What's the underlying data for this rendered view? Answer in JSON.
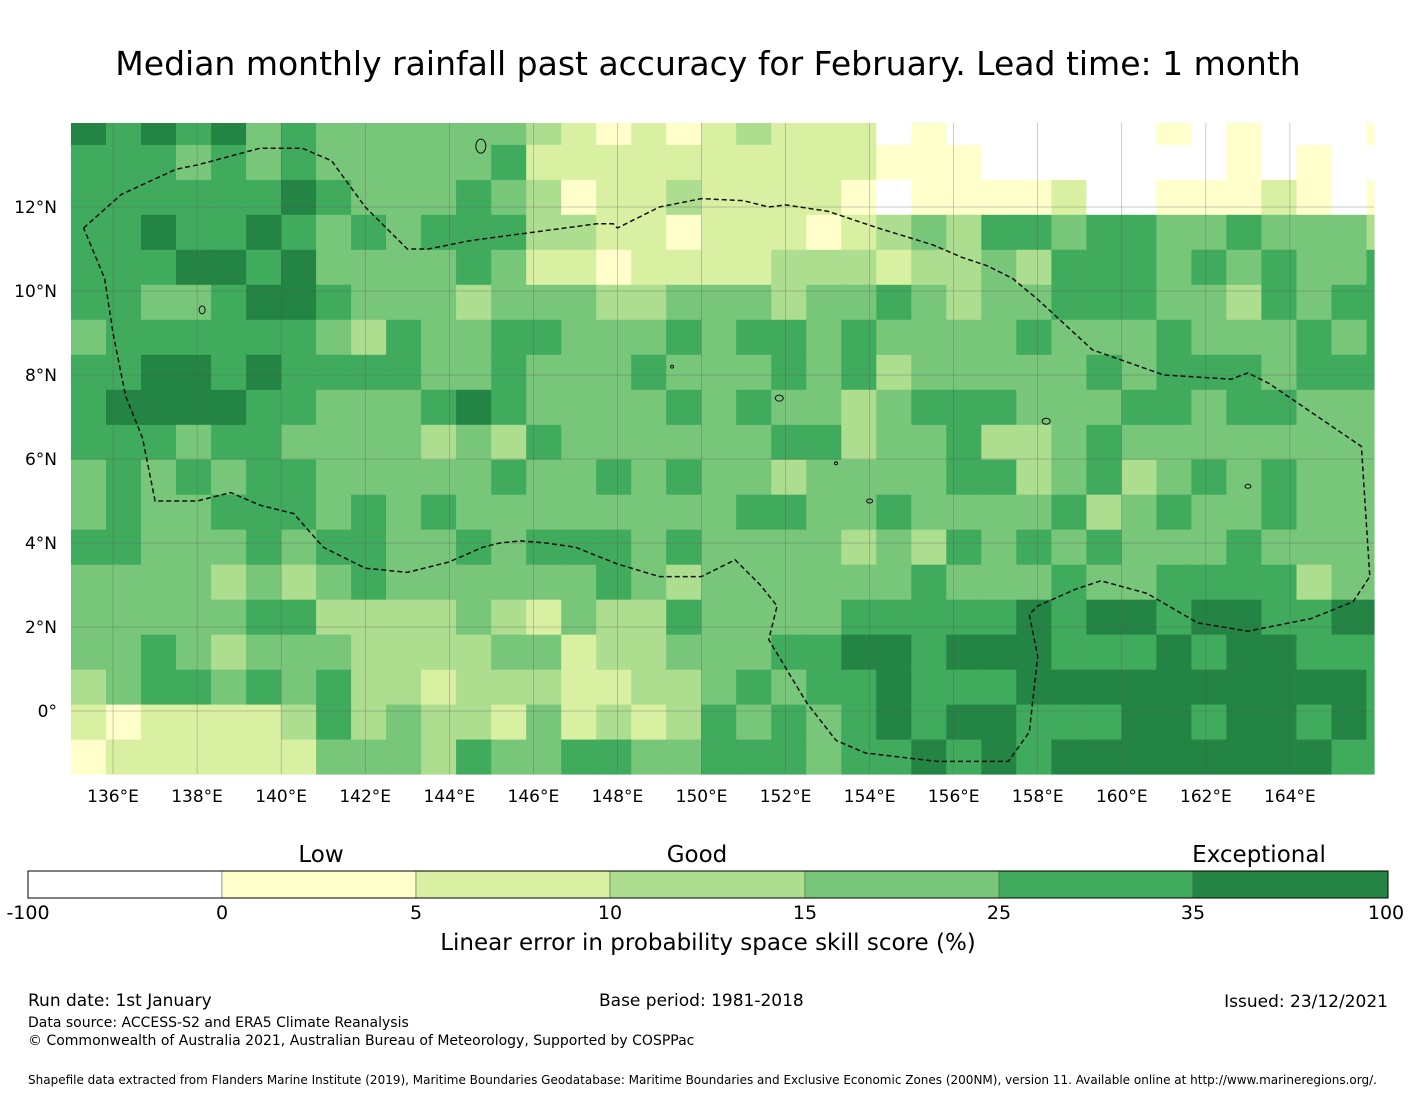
{
  "title": "Median monthly rainfall past accuracy for February. Lead time: 1 month",
  "map": {
    "lon_ticks": [
      "136°E",
      "138°E",
      "140°E",
      "142°E",
      "144°E",
      "146°E",
      "148°E",
      "150°E",
      "152°E",
      "154°E",
      "156°E",
      "158°E",
      "160°E",
      "162°E",
      "164°E"
    ],
    "lat_ticks": [
      "12°N",
      "10°N",
      "8°N",
      "6°N",
      "4°N",
      "2°N",
      "0°"
    ],
    "lon_range": [
      135.0,
      166.0
    ],
    "lat_range": [
      -1.5,
      14.0
    ],
    "grid_resolution_deg": 0.833,
    "boundary_lonlat": [
      [
        135.3,
        11.5
      ],
      [
        136.2,
        12.3
      ],
      [
        137.5,
        12.9
      ],
      [
        138.0,
        13.0
      ],
      [
        139.5,
        13.4
      ],
      [
        140.5,
        13.4
      ],
      [
        141.2,
        13.1
      ],
      [
        142.0,
        12.0
      ],
      [
        143.0,
        11.0
      ],
      [
        143.5,
        11.0
      ],
      [
        144.5,
        11.2
      ],
      [
        146.0,
        11.4
      ],
      [
        147.5,
        11.6
      ],
      [
        147.9,
        11.6
      ],
      [
        148.0,
        11.5
      ],
      [
        149.0,
        12.0
      ],
      [
        150.0,
        12.2
      ],
      [
        151.0,
        12.15
      ],
      [
        151.6,
        12.0
      ],
      [
        152.0,
        12.05
      ],
      [
        153.0,
        11.9
      ],
      [
        154.2,
        11.5
      ],
      [
        155.5,
        11.1
      ],
      [
        156.2,
        10.8
      ],
      [
        156.8,
        10.6
      ],
      [
        157.4,
        10.3
      ],
      [
        158.0,
        9.8
      ],
      [
        159.3,
        8.6
      ],
      [
        161.0,
        8.0
      ],
      [
        162.6,
        7.9
      ],
      [
        163.0,
        8.05
      ],
      [
        163.5,
        7.8
      ],
      [
        165.7,
        6.3
      ],
      [
        165.9,
        3.2
      ],
      [
        165.5,
        2.6
      ],
      [
        164.5,
        2.2
      ],
      [
        163.0,
        1.9
      ],
      [
        161.8,
        2.1
      ],
      [
        160.6,
        2.8
      ],
      [
        159.5,
        3.1
      ],
      [
        158.9,
        2.9
      ],
      [
        158.0,
        2.5
      ],
      [
        157.8,
        2.3
      ],
      [
        158.0,
        1.3
      ],
      [
        157.8,
        -0.5
      ],
      [
        157.3,
        -1.2
      ],
      [
        155.6,
        -1.2
      ],
      [
        153.9,
        -1.0
      ],
      [
        153.2,
        -0.7
      ],
      [
        152.5,
        0.2
      ],
      [
        151.6,
        1.7
      ],
      [
        151.8,
        2.5
      ],
      [
        151.4,
        3.0
      ],
      [
        150.8,
        3.6
      ],
      [
        150.4,
        3.4
      ],
      [
        150.0,
        3.2
      ],
      [
        149.0,
        3.2
      ],
      [
        148.0,
        3.5
      ],
      [
        147.0,
        3.9
      ],
      [
        146.3,
        4.0
      ],
      [
        145.7,
        4.05
      ],
      [
        145.2,
        4.0
      ],
      [
        144.8,
        3.9
      ],
      [
        144.0,
        3.55
      ],
      [
        143.0,
        3.3
      ],
      [
        142.0,
        3.4
      ],
      [
        141.0,
        3.9
      ],
      [
        140.3,
        4.7
      ],
      [
        139.5,
        4.9
      ],
      [
        138.8,
        5.2
      ],
      [
        138.0,
        5.0
      ],
      [
        137.0,
        5.0
      ],
      [
        136.7,
        6.5
      ],
      [
        136.3,
        7.5
      ],
      [
        136.0,
        9.0
      ],
      [
        135.8,
        10.3
      ],
      [
        135.3,
        11.5
      ]
    ]
  },
  "legend": {
    "categories": [
      "Low",
      "Good",
      "Exceptional"
    ],
    "bins": [
      {
        "from": "-100",
        "to": "0",
        "color": "#ffffff"
      },
      {
        "from": "0",
        "to": "5",
        "color": "#ffffcc"
      },
      {
        "from": "5",
        "to": "10",
        "color": "#d9f0a3"
      },
      {
        "from": "10",
        "to": "15",
        "color": "#addd8e"
      },
      {
        "from": "15",
        "to": "25",
        "color": "#78c679"
      },
      {
        "from": "25",
        "to": "35",
        "color": "#41ab5d"
      },
      {
        "from": "35",
        "to": "100",
        "color": "#238443"
      }
    ],
    "ticks": [
      "-100",
      "0",
      "5",
      "10",
      "15",
      "25",
      "35",
      "100"
    ],
    "title": "Linear error in probability space skill score (%)"
  },
  "footer": {
    "run_date": "Run date: 1st January",
    "base_period": "Base period: 1981-2018",
    "issued": "Issued: 23/12/2021",
    "data_source": "Data source: ACCESS-S2 and ERA5 Climate Reanalysis",
    "copyright": "© Commonwealth of Australia 2021, Australian Bureau of Meteorology, Supported by COSPPac",
    "shapefile": "Shapefile data extracted from Flanders Marine Institute (2019), Maritime Boundaries Geodatabase: Maritime Boundaries and Exclusive Economic Zones (200NM), version 11. Available online at http://www.marineregions.org/."
  }
}
